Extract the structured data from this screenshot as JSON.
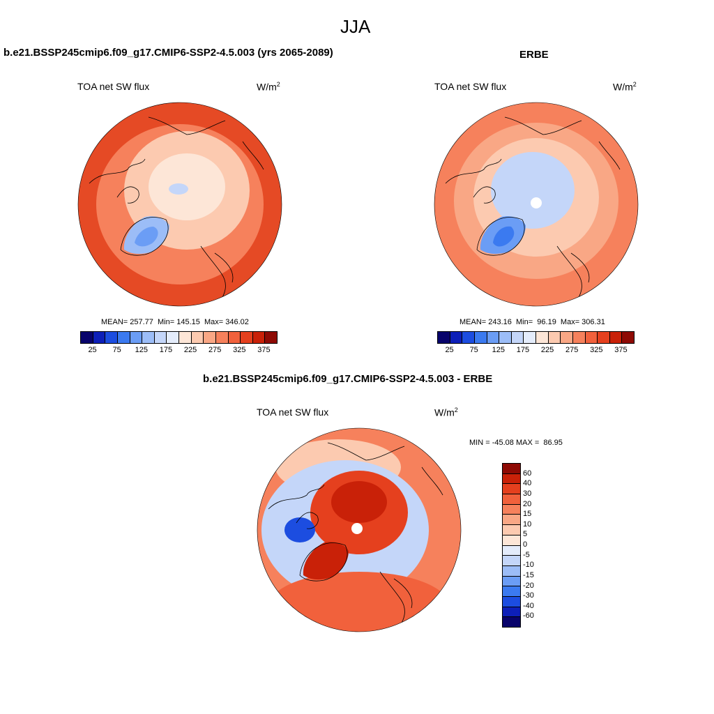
{
  "figure": {
    "season": "JJA"
  },
  "panels": [
    {
      "title": "b.e21.BSSP245cmip6.f09_g17.CMIP6-SSP2-4.5.003 (yrs 2065-2089)",
      "variable": "TOA net SW flux",
      "units_base": "W/m",
      "units_exp": "2",
      "stats": "MEAN= 257.77  Min= 145.15  Max= 346.02"
    },
    {
      "title": "ERBE",
      "variable": "TOA net SW flux",
      "units_base": "W/m",
      "units_exp": "2",
      "stats": "MEAN= 243.16  Min=  96.19  Max= 306.31"
    },
    {
      "title": "b.e21.BSSP245cmip6.f09_g17.CMIP6-SSP2-4.5.003 - ERBE",
      "variable": "TOA net SW flux",
      "units_base": "W/m",
      "units_exp": "2",
      "stats": "MIN = -45.08 MAX =  86.95"
    }
  ],
  "colorbar_abs": {
    "labels": [
      "25",
      "75",
      "125",
      "175",
      "225",
      "275",
      "325",
      "375"
    ],
    "colors": [
      "#08036b",
      "#0d1fb8",
      "#1c4de0",
      "#3b7af0",
      "#6b9df5",
      "#9cbdf7",
      "#c4d6f9",
      "#e4ecfb",
      "#fde6d7",
      "#fccab0",
      "#f9a785",
      "#f6815c",
      "#f1613c",
      "#e5401e",
      "#c92108",
      "#8e0a04"
    ]
  },
  "colorbar_diff": {
    "labels": [
      "60",
      "40",
      "30",
      "20",
      "15",
      "10",
      "5",
      "0",
      "-5",
      "-10",
      "-15",
      "-20",
      "-30",
      "-40",
      "-60"
    ],
    "colors": [
      "#8e0a04",
      "#c92108",
      "#e5401e",
      "#f1613c",
      "#f6815c",
      "#f9a785",
      "#fccab0",
      "#fde6d7",
      "#e4ecfb",
      "#c4d6f9",
      "#9cbdf7",
      "#6b9df5",
      "#3b7af0",
      "#1c4de0",
      "#0d1fb8",
      "#08036b"
    ]
  },
  "map_colors": {
    "high": "#e54a25",
    "mid": "#f6815c",
    "low": "#fccab0",
    "neutral": "#fde6d7",
    "cool": "#c4d6f9",
    "cold": "#6b9df5",
    "coldest": "#1c4de0",
    "coast": "#000000"
  }
}
